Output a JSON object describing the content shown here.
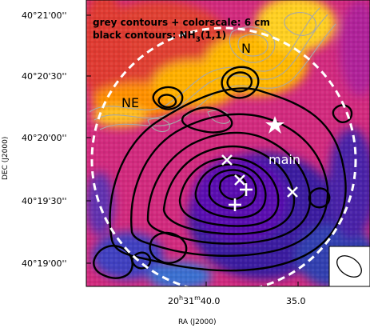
{
  "chart_data": {
    "type": "heatmap",
    "title": "",
    "xlabel": "RA (J2000)",
    "ylabel": "DEC (J2000)",
    "x_ticks": [
      {
        "ra_sec": 40.0,
        "label_main": "20",
        "label_h": "h",
        "label_mid": "31",
        "label_m": "m",
        "label_end": "40.0"
      },
      {
        "ra_sec": 35.0,
        "label_main": "",
        "label_h": "",
        "label_mid": "",
        "label_m": "",
        "label_end": "35.0"
      }
    ],
    "y_ticks": [
      {
        "dec": "40°21'00''",
        "label": "40°21'00''"
      },
      {
        "dec": "40°20'30''",
        "label": "40°20'30''"
      },
      {
        "dec": "40°20'00''",
        "label": "40°20'00''"
      },
      {
        "dec": "40°19'30''",
        "label": "40°19'30''"
      },
      {
        "dec": "40°19'00''",
        "label": "40°19'00''"
      }
    ],
    "legend": {
      "line1": "grey contours + colorscale: 6 cm",
      "line2_prefix": "black contours: NH",
      "line2_sub": "3",
      "line2_suffix": "(1,1)"
    },
    "region_labels": [
      {
        "name": "N",
        "text": "N",
        "color": "#000000"
      },
      {
        "name": "NE",
        "text": "NE",
        "color": "#000000"
      },
      {
        "name": "main",
        "text": "main",
        "color": "#ffffff"
      }
    ],
    "markers": [
      {
        "symbol": "star"
      },
      {
        "symbol": "x"
      },
      {
        "symbol": "x"
      },
      {
        "symbol": "x"
      },
      {
        "symbol": "plus"
      },
      {
        "symbol": "plus"
      }
    ],
    "beam": {
      "shape": "ellipse"
    },
    "colors": {
      "heat_low": "#5020a0",
      "heat_mid": "#d02080",
      "heat_high": "#ffb000",
      "peak": "#ffff70",
      "contour_black": "#000000",
      "contour_grey": "#909090",
      "circle": "#ffffff"
    }
  }
}
